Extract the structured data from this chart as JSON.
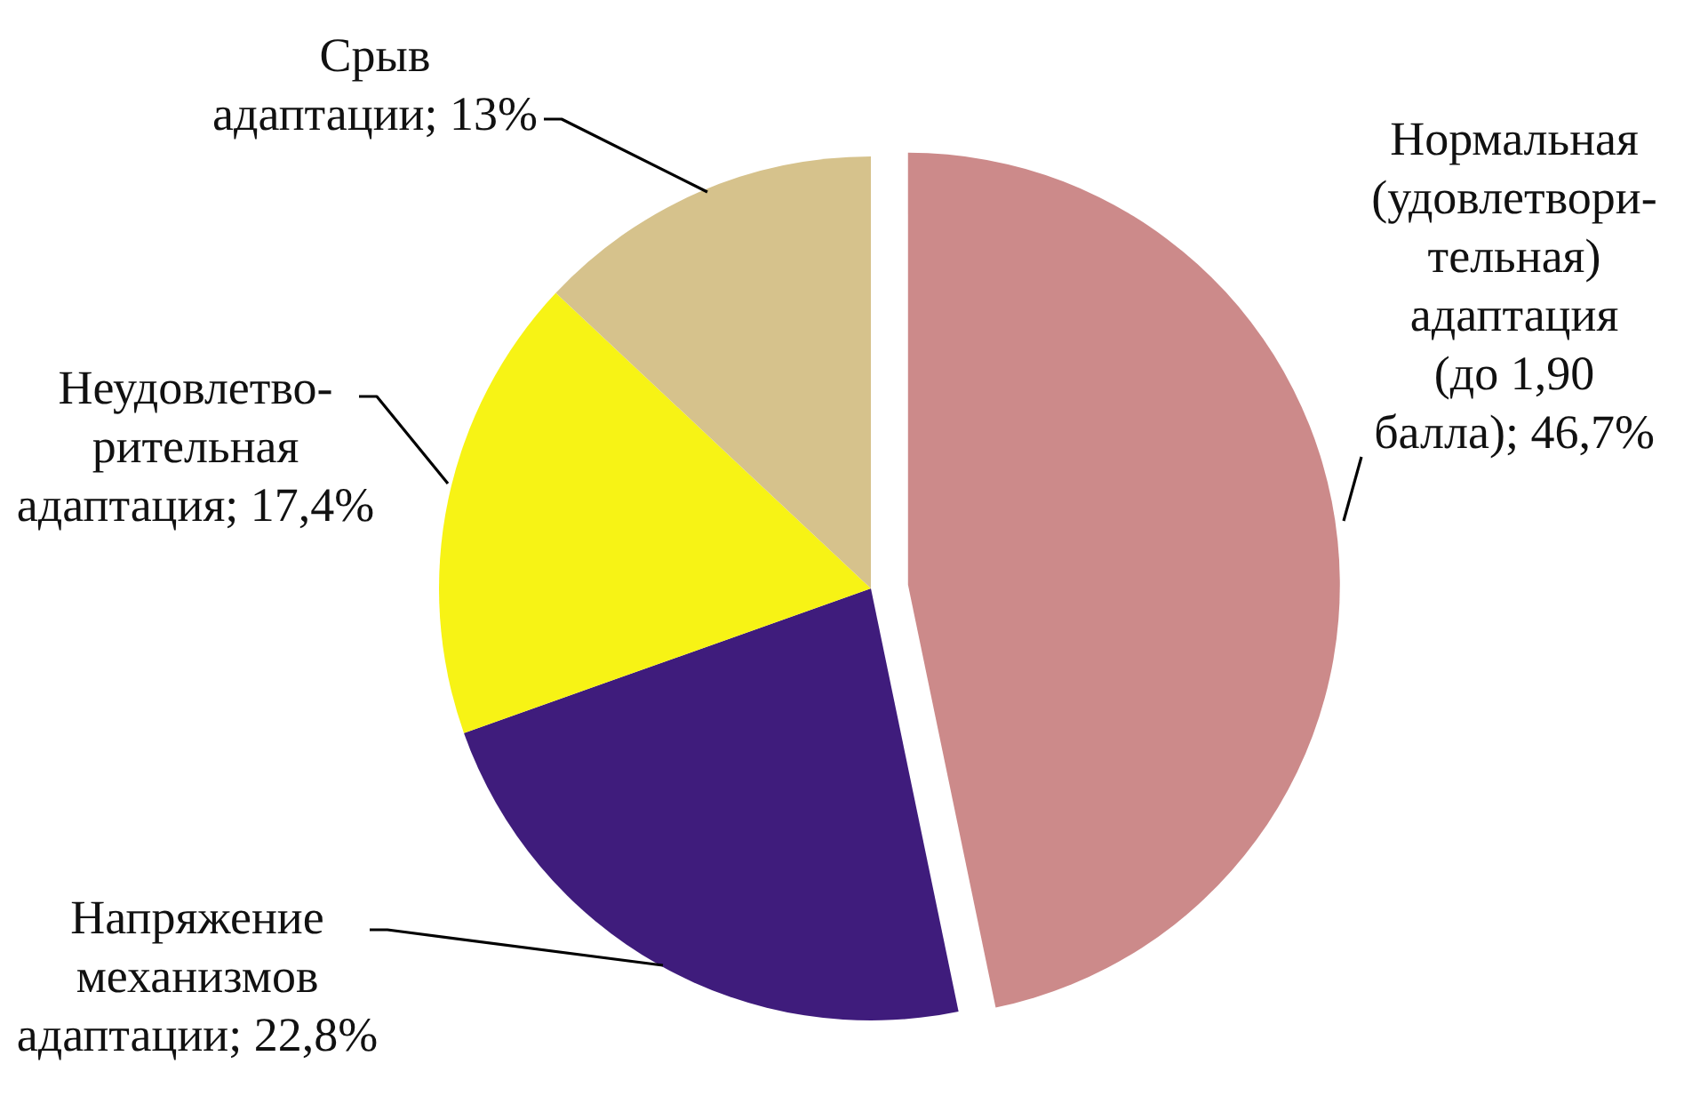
{
  "chart_data": {
    "type": "pie",
    "categories": [
      "Нормальная\n(удовлетвори-\nтельная)\nадаптация\n(до 1,90\nбалла)",
      "Напряжение\nмеханизмов\nадаптации",
      "Неудовлетво-\nрительная\nадаптация",
      "Срыв\nадаптации"
    ],
    "values": [
      46.7,
      22.8,
      17.4,
      13
    ],
    "value_labels": [
      "46,7%",
      "22,8%",
      "17,4%",
      "13%"
    ],
    "colors": [
      "#cc8a8a",
      "#3f1c7c",
      "#f7f315",
      "#d6c28c"
    ]
  }
}
